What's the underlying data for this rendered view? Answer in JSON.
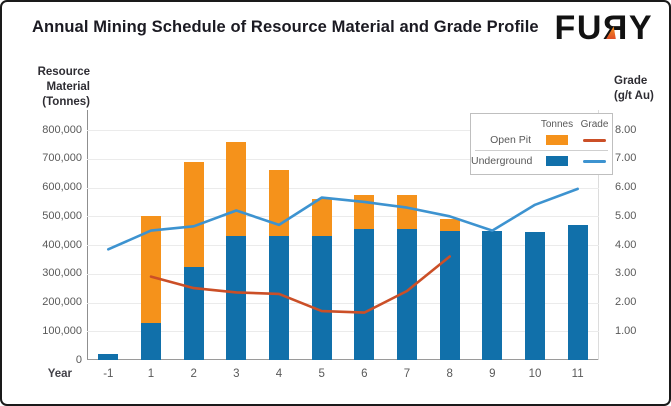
{
  "title": "Annual Mining Schedule of Resource Material and Grade Profile",
  "logo": {
    "part_fu": "FU",
    "part_r": "Я",
    "part_y": "Y"
  },
  "axes": {
    "left_title": "Resource\nMaterial\n(Tonnes)",
    "right_title": "Grade\n(g/t Au)",
    "left_ticks": [
      "0",
      "100,000",
      "200,000",
      "300,000",
      "400,000",
      "500,000",
      "600,000",
      "700,000",
      "800,000"
    ],
    "right_ticks": [
      "1.00",
      "2.00",
      "3.00",
      "4.00",
      "5.00",
      "6.00",
      "7.00",
      "8.00"
    ],
    "x_axis_label": "Year"
  },
  "legend": {
    "col_tonnes": "Tonnes",
    "col_grade": "Grade",
    "rows": [
      {
        "label": "Open Pit"
      },
      {
        "label": "Underground"
      }
    ]
  },
  "colors": {
    "underground_bar": "#1170aa",
    "openpit_bar": "#f5921b",
    "openpit_grade_line": "#cb4f27",
    "underground_grade_line": "#3d93d0",
    "grid": "#ebebeb",
    "text": "#595959",
    "title_text": "#1b1a22"
  },
  "chart_data": {
    "type": "bar",
    "subtype": "stacked-bars-with-line-overlay",
    "title": "Annual Mining Schedule of Resource Material and Grade Profile",
    "xlabel": "Year",
    "ylabel_left": "Resource Material (Tonnes)",
    "ylabel_right": "Grade (g/t Au)",
    "ylim_left": [
      0,
      800000
    ],
    "ylim_right": [
      0,
      8
    ],
    "grid": "horizontal",
    "legend_position": "top-right",
    "categories": [
      "-1",
      "1",
      "2",
      "3",
      "4",
      "5",
      "6",
      "7",
      "8",
      "9",
      "10",
      "11"
    ],
    "series": [
      {
        "name": "Underground",
        "role": "bar-stack-bottom",
        "axis": "left",
        "color": "#1170aa",
        "values": [
          20000,
          130000,
          325000,
          430000,
          430000,
          430000,
          455000,
          455000,
          450000,
          450000,
          445000,
          470000
        ]
      },
      {
        "name": "Open Pit",
        "role": "bar-stack-top",
        "axis": "left",
        "color": "#f5921b",
        "values": [
          0,
          370000,
          365000,
          330000,
          230000,
          130000,
          120000,
          120000,
          40000,
          0,
          0,
          0
        ]
      },
      {
        "name": "Open Pit Grade",
        "role": "line",
        "axis": "right",
        "color": "#cb4f27",
        "values": [
          null,
          2.9,
          2.5,
          2.35,
          2.3,
          1.7,
          1.65,
          2.4,
          3.6,
          null,
          null,
          null
        ]
      },
      {
        "name": "Underground Grade",
        "role": "line",
        "axis": "right",
        "color": "#3d93d0",
        "values": [
          3.85,
          4.5,
          4.65,
          5.2,
          4.7,
          5.65,
          5.5,
          5.3,
          5.0,
          4.5,
          5.4,
          5.95
        ]
      }
    ]
  }
}
